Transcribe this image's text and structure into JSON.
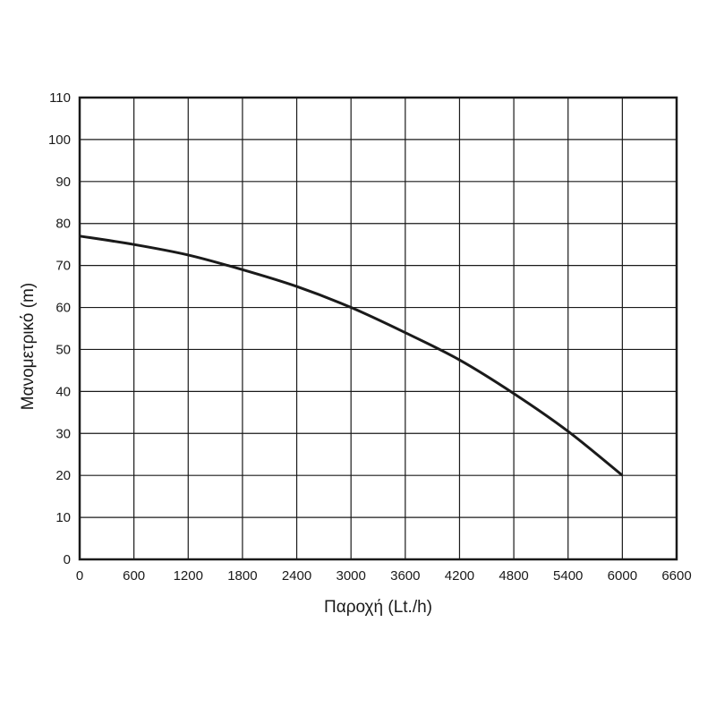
{
  "chart_data": {
    "type": "line",
    "title": "",
    "xlabel": "Παροχή (Lt./h)",
    "ylabel": "Μανομετρικό  (m)",
    "xlim": [
      0,
      6600
    ],
    "ylim": [
      0,
      110
    ],
    "grid": true,
    "x_ticks": [
      0,
      600,
      1200,
      1800,
      2400,
      3000,
      3600,
      4200,
      4800,
      5400,
      6000,
      6600
    ],
    "y_ticks": [
      0,
      10,
      20,
      30,
      40,
      50,
      60,
      70,
      80,
      90,
      100,
      110
    ],
    "series": [
      {
        "color": "#1a1a1a",
        "x": [
          0,
          600,
          1200,
          1800,
          2400,
          3000,
          3600,
          4200,
          4800,
          5400,
          6000
        ],
        "y": [
          77,
          75,
          72.5,
          69,
          65,
          60,
          54,
          47.5,
          39.5,
          30.5,
          20
        ]
      }
    ]
  }
}
